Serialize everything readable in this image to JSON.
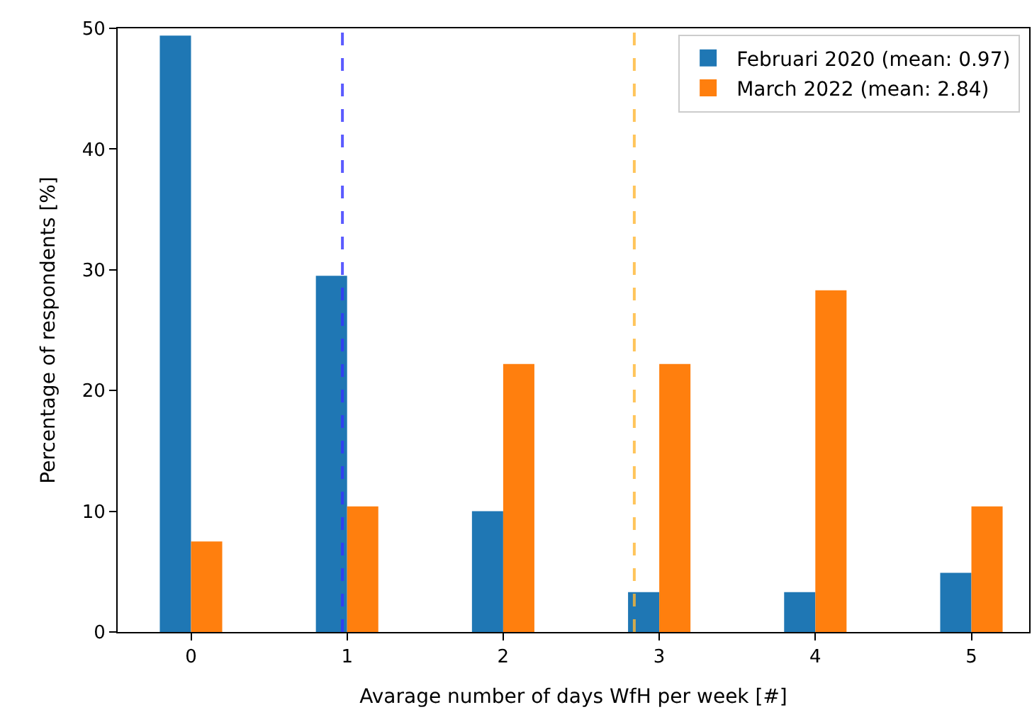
{
  "chart_data": {
    "type": "bar",
    "xlabel": "Avarage number of days WfH per week [#]",
    "ylabel": "Percentage of respondents [%]",
    "x": [
      0,
      1,
      2,
      3,
      4,
      5
    ],
    "series": [
      {
        "name": "Februari 2020 (mean: 0.97)",
        "color": "#1f77b4",
        "values": [
          49.4,
          29.5,
          10.0,
          3.3,
          3.3,
          4.9
        ]
      },
      {
        "name": "March 2022 (mean: 2.84)",
        "color": "#ff7f0e",
        "values": [
          7.5,
          10.4,
          22.2,
          22.2,
          28.3,
          10.4
        ]
      }
    ],
    "xlim": [
      -0.47,
      5.37
    ],
    "xticks": [
      0,
      1,
      2,
      3,
      4,
      5
    ],
    "ylim": [
      0,
      50
    ],
    "yticks": [
      0,
      10,
      20,
      30,
      40,
      50
    ],
    "ref_lines": [
      {
        "axis": "x",
        "value": 0.97,
        "color": "#3333ff",
        "line_style": "dashed"
      },
      {
        "axis": "x",
        "value": 2.84,
        "color": "#ffb733",
        "line_style": "dashed"
      }
    ],
    "legend": "top right"
  }
}
